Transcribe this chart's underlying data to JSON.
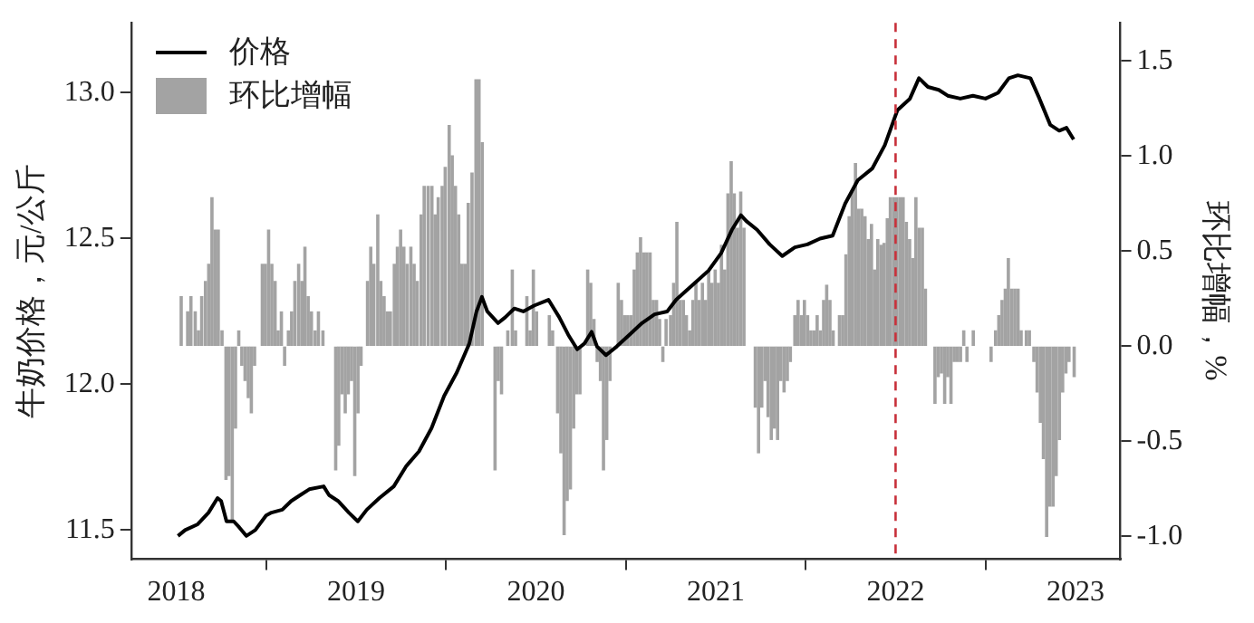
{
  "chart_data": {
    "type": "line",
    "ylabel": "牛奶价格，元/公斤",
    "y2label": "环比增幅，%",
    "legend": "top left",
    "xlim": [
      2017.75,
      2023.25
    ],
    "xticks": [
      2018,
      2019,
      2020,
      2021,
      2022,
      2023
    ],
    "ylim": [
      11.4,
      13.24
    ],
    "yticks": [
      {
        "value": 11.5,
        "label": "11.5"
      },
      {
        "value": 12,
        "label": "12.0"
      },
      {
        "value": 12.5,
        "label": "12.5"
      },
      {
        "value": 13,
        "label": "13.0"
      }
    ],
    "y2lim": [
      -1.12,
      1.7
    ],
    "y2ticks": [
      {
        "value": -1,
        "label": "-1.0"
      },
      {
        "value": -0.5,
        "label": "-0.5"
      },
      {
        "value": 0,
        "label": "0.0"
      },
      {
        "value": 0.5,
        "label": "0.5"
      },
      {
        "value": 1,
        "label": "1.0"
      },
      {
        "value": 1.5,
        "label": "1.5"
      }
    ],
    "ref_lines": [
      {
        "axis": "x",
        "value": 2022,
        "color": "#c8303a",
        "line_style": "dashed"
      }
    ],
    "series": [
      {
        "name": "价格",
        "color": "#000000",
        "x": [
          2018.01,
          2018.05,
          2018.12,
          2018.18,
          2018.23,
          2018.25,
          2018.28,
          2018.32,
          2018.35,
          2018.39,
          2018.44,
          2018.5,
          2018.53,
          2018.59,
          2018.64,
          2018.69,
          2018.74,
          2018.82,
          2018.85,
          2018.9,
          2018.96,
          2019.01,
          2019.06,
          2019.13,
          2019.21,
          2019.28,
          2019.35,
          2019.42,
          2019.49,
          2019.56,
          2019.63,
          2019.67,
          2019.7,
          2019.73,
          2019.79,
          2019.83,
          2019.88,
          2019.93,
          2019.99,
          2020.07,
          2020.13,
          2020.18,
          2020.23,
          2020.27,
          2020.31,
          2020.34,
          2020.39,
          2020.45,
          2020.52,
          2020.59,
          2020.66,
          2020.73,
          2020.78,
          2020.87,
          2020.96,
          2021.03,
          2021.09,
          2021.14,
          2021.17,
          2021.23,
          2021.3,
          2021.37,
          2021.44,
          2021.51,
          2021.58,
          2021.65,
          2021.72,
          2021.79,
          2021.87,
          2021.94,
          2022.01,
          2022.08,
          2022.13,
          2022.18,
          2022.24,
          2022.29,
          2022.36,
          2022.43,
          2022.5,
          2022.57,
          2022.63,
          2022.68,
          2022.75,
          2022.8,
          2022.86,
          2022.91,
          2022.95,
          2022.99
        ],
        "values": [
          11.48,
          11.5,
          11.52,
          11.56,
          11.61,
          11.6,
          11.53,
          11.53,
          11.51,
          11.48,
          11.5,
          11.55,
          11.56,
          11.57,
          11.6,
          11.62,
          11.64,
          11.65,
          11.62,
          11.6,
          11.56,
          11.53,
          11.57,
          11.61,
          11.65,
          11.72,
          11.77,
          11.85,
          11.96,
          12.04,
          12.14,
          12.25,
          12.3,
          12.25,
          12.21,
          12.23,
          12.26,
          12.25,
          12.27,
          12.29,
          12.23,
          12.17,
          12.12,
          12.14,
          12.18,
          12.13,
          12.1,
          12.13,
          12.17,
          12.21,
          12.24,
          12.25,
          12.29,
          12.34,
          12.39,
          12.45,
          12.53,
          12.58,
          12.56,
          12.53,
          12.48,
          12.44,
          12.47,
          12.48,
          12.5,
          12.51,
          12.62,
          12.7,
          12.74,
          12.82,
          12.94,
          12.98,
          13.05,
          13.02,
          13.01,
          12.99,
          12.98,
          12.99,
          12.98,
          13.0,
          13.05,
          13.06,
          13.05,
          12.98,
          12.89,
          12.87,
          12.88,
          12.84
        ]
      },
      {
        "name": "环比增幅",
        "type": "bar",
        "axis": "y2",
        "color": "#a3a3a3",
        "x": [
          2018.028,
          2018.064,
          2018.082,
          2018.106,
          2018.124,
          2018.142,
          2018.163,
          2018.181,
          2018.199,
          2018.216,
          2018.234,
          2018.255,
          2018.277,
          2018.294,
          2018.312,
          2018.33,
          2018.348,
          2018.365,
          2018.383,
          2018.401,
          2018.418,
          2018.436,
          2018.479,
          2018.496,
          2018.514,
          2018.532,
          2018.55,
          2018.567,
          2018.585,
          2018.603,
          2018.624,
          2018.642,
          2018.66,
          2018.681,
          2018.699,
          2018.716,
          2018.734,
          2018.752,
          2018.773,
          2018.791,
          2018.816,
          2018.887,
          2018.904,
          2018.922,
          2018.94,
          2018.957,
          2018.975,
          2018.993,
          2019.011,
          2019.028,
          2019.064,
          2019.082,
          2019.099,
          2019.121,
          2019.138,
          2019.156,
          2019.174,
          2019.191,
          2019.213,
          2019.23,
          2019.248,
          2019.266,
          2019.284,
          2019.305,
          2019.323,
          2019.34,
          2019.362,
          2019.379,
          2019.401,
          2019.422,
          2019.44,
          2019.457,
          2019.479,
          2019.496,
          2019.518,
          2019.535,
          2019.553,
          2019.571,
          2019.589,
          2019.606,
          2019.624,
          2019.645,
          2019.667,
          2019.684,
          2019.702,
          2019.773,
          2019.791,
          2019.809,
          2019.844,
          2019.869,
          2019.887,
          2019.95,
          2019.968,
          2019.986,
          2020.004,
          2020.075,
          2020.093,
          2020.121,
          2020.139,
          2020.157,
          2020.174,
          2020.192,
          2020.21,
          2020.227,
          2020.245,
          2020.288,
          2020.305,
          2020.323,
          2020.341,
          2020.359,
          2020.376,
          2020.394,
          2020.412,
          2020.458,
          2020.476,
          2020.493,
          2020.511,
          2020.529,
          2020.547,
          2020.564,
          2020.582,
          2020.6,
          2020.617,
          2020.635,
          2020.653,
          2020.671,
          2020.688,
          2020.706,
          2020.724,
          2020.749,
          2020.766,
          2020.784,
          2020.802,
          2020.82,
          2020.837,
          2020.855,
          2020.873,
          2020.89,
          2020.908,
          2020.926,
          2020.944,
          2020.961,
          2020.979,
          2020.997,
          2021.015,
          2021.032,
          2021.05,
          2021.068,
          2021.086,
          2021.103,
          2021.121,
          2021.139,
          2021.157,
          2021.22,
          2021.238,
          2021.256,
          2021.274,
          2021.291,
          2021.309,
          2021.327,
          2021.344,
          2021.362,
          2021.38,
          2021.398,
          2021.415,
          2021.44,
          2021.458,
          2021.476,
          2021.493,
          2021.511,
          2021.529,
          2021.547,
          2021.564,
          2021.582,
          2021.6,
          2021.617,
          2021.635,
          2021.653,
          2021.688,
          2021.706,
          2021.724,
          2021.742,
          2021.759,
          2021.777,
          2021.795,
          2021.812,
          2021.83,
          2021.848,
          2021.866,
          2021.883,
          2021.901,
          2021.919,
          2021.936,
          2021.954,
          2021.971,
          2021.989,
          2022.007,
          2022.025,
          2022.042,
          2022.06,
          2022.078,
          2022.096,
          2022.113,
          2022.131,
          2022.149,
          2022.166,
          2022.219,
          2022.237,
          2022.255,
          2022.273,
          2022.29,
          2022.308,
          2022.326,
          2022.344,
          2022.361,
          2022.379,
          2022.397,
          2022.432,
          2022.531,
          2022.556,
          2022.574,
          2022.592,
          2022.61,
          2022.627,
          2022.645,
          2022.663,
          2022.681,
          2022.698,
          2022.727,
          2022.744,
          2022.769,
          2022.787,
          2022.805,
          2022.822,
          2022.84,
          2022.858,
          2022.876,
          2022.893,
          2022.911,
          2022.929,
          2022.947,
          2022.964,
          2022.993
        ],
        "values": [
          0.26,
          0.18,
          0.26,
          0.18,
          0.08,
          0.26,
          0.34,
          0.43,
          0.78,
          0.61,
          0.61,
          0.08,
          -0.7,
          -0.68,
          -0.91,
          -0.43,
          0.08,
          -0.1,
          -0.18,
          -0.27,
          -0.35,
          -0.1,
          0.43,
          0.43,
          0.61,
          0.43,
          0.34,
          0.08,
          0.18,
          -0.1,
          0.08,
          0.18,
          0.34,
          0.43,
          0.34,
          0.52,
          0.26,
          0.18,
          0.08,
          0.18,
          0.08,
          -0.65,
          -0.52,
          -0.25,
          -0.35,
          -0.25,
          -0.18,
          -0.68,
          -0.35,
          -0.1,
          0.34,
          0.52,
          0.43,
          0.69,
          0.34,
          0.26,
          0.18,
          0.18,
          0.43,
          0.52,
          0.61,
          0.52,
          0.43,
          0.52,
          0.43,
          0.34,
          0.69,
          0.84,
          0.84,
          0.84,
          0.69,
          0.78,
          0.84,
          0.94,
          1.16,
          1.0,
          0.84,
          0.69,
          0.43,
          0.43,
          0.75,
          0.91,
          1.4,
          1.4,
          1.07,
          -0.65,
          -0.18,
          -0.25,
          0.08,
          0.4,
          0.08,
          0.26,
          0.08,
          0.4,
          0.18,
          0.16,
          0.08,
          -0.35,
          -0.56,
          -0.99,
          -0.81,
          -0.75,
          -0.43,
          -0.25,
          -0.25,
          0.4,
          0.33,
          0.14,
          -0.08,
          -0.18,
          -0.65,
          -0.49,
          -0.18,
          0.33,
          0.24,
          0.16,
          0.16,
          0.16,
          0.4,
          0.49,
          0.57,
          0.49,
          0.49,
          0.49,
          0.24,
          0.24,
          0.14,
          -0.08,
          0.14,
          0.16,
          0.33,
          0.65,
          0.24,
          0.24,
          0.16,
          0.08,
          0.24,
          0.33,
          0.24,
          0.33,
          0.24,
          0.4,
          0.33,
          0.4,
          0.33,
          0.53,
          0.4,
          0.8,
          0.97,
          0.8,
          0.62,
          0.81,
          0.62,
          -0.32,
          -0.56,
          -0.32,
          -0.18,
          -0.37,
          -0.49,
          -0.43,
          -0.49,
          -0.18,
          -0.24,
          -0.18,
          -0.08,
          0.16,
          0.24,
          0.16,
          0.24,
          0.16,
          0.08,
          0.08,
          0.16,
          0.08,
          0.24,
          0.32,
          0.24,
          0.08,
          0.16,
          0.16,
          0.48,
          0.68,
          0.81,
          0.96,
          0.72,
          0.72,
          0.68,
          0.56,
          0.64,
          0.4,
          0.56,
          0.53,
          0.54,
          0.67,
          0.78,
          0.78,
          0.78,
          0.78,
          0.78,
          0.65,
          0.56,
          0.46,
          0.78,
          0.62,
          0.62,
          0.3,
          -0.3,
          -0.16,
          -0.14,
          -0.3,
          -0.16,
          -0.3,
          -0.08,
          -0.08,
          -0.08,
          0.08,
          -0.08,
          0.08,
          -0.08,
          0.08,
          0.16,
          0.24,
          0.3,
          0.46,
          0.3,
          0.3,
          0.3,
          0.08,
          0.08,
          0.08,
          -0.08,
          -0.24,
          -0.4,
          -0.59,
          -1.0,
          -0.84,
          -0.84,
          -0.68,
          -0.49,
          -0.24,
          -0.14,
          -0.08,
          -0.16
        ]
      }
    ]
  }
}
